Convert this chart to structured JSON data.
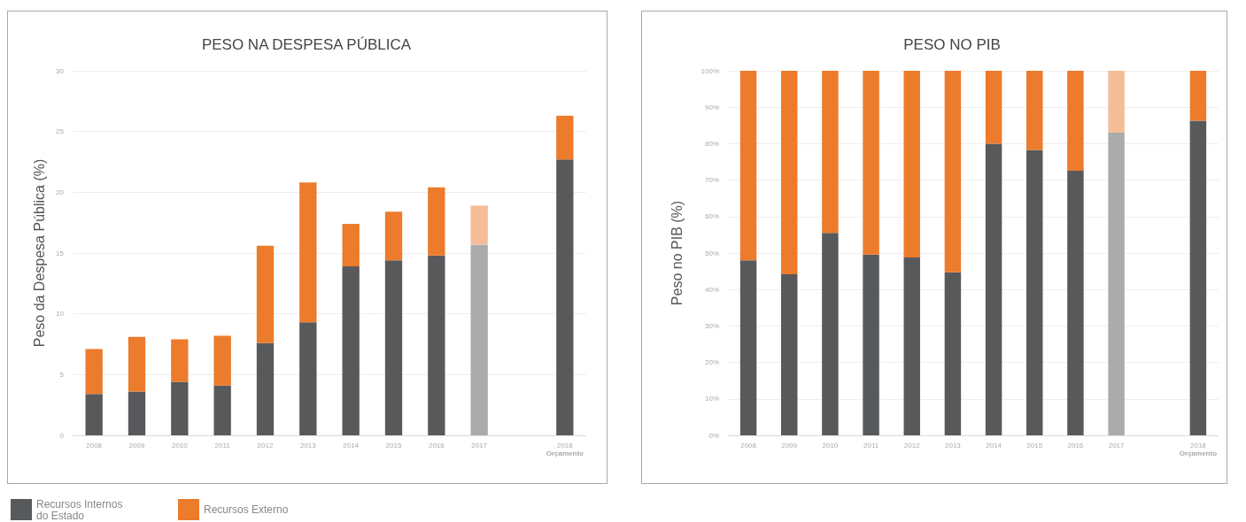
{
  "chart_data": [
    {
      "type": "bar",
      "title": "PESO NA DESPESA PÚBLICA",
      "ylabel": "Peso da Despesa Pública (%)",
      "categories": [
        "2008",
        "2009",
        "2010",
        "2011",
        "2012",
        "2013",
        "2014",
        "2015",
        "2016",
        "2017",
        null,
        "2018\nOrçamento"
      ],
      "series": [
        {
          "name": "Recursos Internos do Estado",
          "color": "#58595b",
          "colors": [
            "#58595b",
            "#58595b",
            "#58595b",
            "#58595b",
            "#58595b",
            "#58595b",
            "#58595b",
            "#58595b",
            "#58595b",
            "#aaabac",
            null,
            "#58595b"
          ],
          "values": [
            3.4,
            3.6,
            4.4,
            4.1,
            7.6,
            9.3,
            13.9,
            14.4,
            14.8,
            15.7,
            null,
            22.7
          ]
        },
        {
          "name": "Recursos Externo",
          "color": "#ec7b2c",
          "colors": [
            "#ec7b2c",
            "#ec7b2c",
            "#ec7b2c",
            "#ec7b2c",
            "#ec7b2c",
            "#ec7b2c",
            "#ec7b2c",
            "#ec7b2c",
            "#ec7b2c",
            "#f5bd95",
            null,
            "#ec7b2c"
          ],
          "values": [
            3.7,
            4.5,
            3.5,
            4.1,
            8.0,
            11.5,
            3.5,
            4.0,
            5.6,
            3.2,
            null,
            3.6
          ]
        }
      ],
      "stacked": true,
      "ylim": [
        0,
        30
      ],
      "yticks": [
        0,
        5,
        10,
        15,
        20,
        25,
        30
      ],
      "grid": "y",
      "legend": "bottom left"
    },
    {
      "type": "bar",
      "title": "PESO NO PIB",
      "ylabel": "Peso no PIB (%)",
      "categories": [
        "2008",
        "2009",
        "2010",
        "2011",
        "2012",
        "2013",
        "2014",
        "2015",
        "2016",
        "2017",
        null,
        "2018\nOrçamento"
      ],
      "series": [
        {
          "color": "#58595b",
          "colors": [
            "#58595b",
            "#58595b",
            "#58595b",
            "#58595b",
            "#58595b",
            "#58595b",
            "#58595b",
            "#58595b",
            "#58595b",
            "#aaabac",
            null,
            "#58595b"
          ],
          "values": [
            48,
            44.2,
            55.5,
            49.6,
            48.8,
            44.7,
            80,
            78.3,
            72.6,
            83,
            null,
            86.3
          ]
        },
        {
          "color": "#ec7b2c",
          "colors": [
            "#ec7b2c",
            "#ec7b2c",
            "#ec7b2c",
            "#ec7b2c",
            "#ec7b2c",
            "#ec7b2c",
            "#ec7b2c",
            "#ec7b2c",
            "#ec7b2c",
            "#f5bd95",
            null,
            "#ec7b2c"
          ],
          "values": [
            52,
            55.8,
            44.5,
            50.4,
            51.2,
            55.3,
            20,
            21.7,
            27.4,
            17,
            null,
            13.7
          ]
        }
      ],
      "stacked": true,
      "ylim": [
        0,
        100
      ],
      "yticks": [
        {
          "value": 0,
          "label": "0%"
        },
        {
          "value": 10,
          "label": "10%"
        },
        {
          "value": 20,
          "label": "20%"
        },
        {
          "value": 30,
          "label": "30%"
        },
        {
          "value": 40,
          "label": "40%"
        },
        {
          "value": 50,
          "label": "50%"
        },
        {
          "value": 60,
          "label": "60%"
        },
        {
          "value": 70,
          "label": "70%"
        },
        {
          "value": 80,
          "label": "80%"
        },
        {
          "value": 90,
          "label": "90%"
        },
        {
          "value": 100,
          "label": "100%"
        }
      ],
      "grid": "y"
    }
  ]
}
